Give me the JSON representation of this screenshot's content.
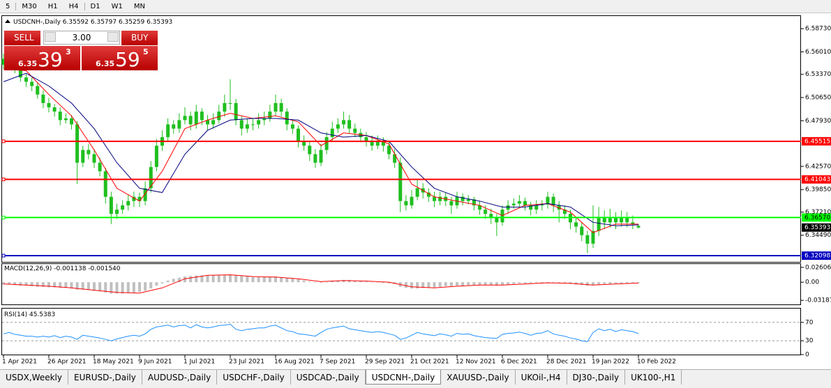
{
  "toolbar": [
    "5",
    "M30",
    "H1",
    "H4",
    "D1",
    "W1",
    "MN"
  ],
  "trade_panel": {
    "sell": "SELL",
    "buy": "BUY",
    "volume": "3.00",
    "sell_price": {
      "big": "6.35",
      "main": "39",
      "small": "3"
    },
    "buy_price": {
      "big": "6.35",
      "main": "59",
      "small": "5"
    }
  },
  "chart_data": [
    {
      "type": "candlestick",
      "title": "USDCNH-,Daily",
      "up_color": "#1fbf1f",
      "down_color": "#1fbf1f",
      "categories": [
        "1 Apr 2021",
        null,
        null,
        null,
        null,
        null,
        null,
        null,
        "26 Apr 2021",
        null,
        null,
        null,
        null,
        null,
        null,
        null,
        "18 May 2021",
        null,
        null,
        null,
        null,
        null,
        null,
        null,
        "9 Jun 2021",
        null,
        null,
        null,
        null,
        null,
        null,
        null,
        "1 Jul 2021",
        null,
        null,
        null,
        null,
        null,
        null,
        null,
        "23 Jul 2021",
        null,
        null,
        null,
        null,
        null,
        null,
        null,
        "16 Aug 2021",
        null,
        null,
        null,
        null,
        null,
        null,
        null,
        "7 Sep 2021",
        null,
        null,
        null,
        null,
        null,
        null,
        null,
        "29 Sep 2021",
        null,
        null,
        null,
        null,
        null,
        null,
        null,
        "21 Oct 2021",
        null,
        null,
        null,
        null,
        null,
        null,
        null,
        "12 Nov 2021",
        null,
        null,
        null,
        null,
        null,
        null,
        null,
        "6 Dec 2021",
        null,
        null,
        null,
        null,
        null,
        null,
        null,
        "28 Dec 2021",
        null,
        null,
        null,
        null,
        null,
        null,
        null,
        "19 Jan 2022",
        null,
        null,
        null,
        null,
        null,
        null,
        null,
        "10 Feb 2022"
      ],
      "candles": [
        [
          6.552,
          6.558,
          6.54,
          6.545
        ],
        [
          6.545,
          6.556,
          6.541,
          6.55
        ],
        [
          6.55,
          6.553,
          6.535,
          6.54
        ],
        [
          6.54,
          6.545,
          6.525,
          6.53
        ],
        [
          6.53,
          6.534,
          6.519,
          6.525
        ],
        [
          6.525,
          6.53,
          6.514,
          6.52
        ],
        [
          6.52,
          6.524,
          6.505,
          6.51
        ],
        [
          6.51,
          6.515,
          6.494,
          6.5
        ],
        [
          6.5,
          6.506,
          6.489,
          6.495
        ],
        [
          6.495,
          6.499,
          6.484,
          6.49
        ],
        [
          6.49,
          6.495,
          6.474,
          6.48
        ],
        [
          6.48,
          6.488,
          6.476,
          6.482
        ],
        [
          6.482,
          6.486,
          6.469,
          6.475
        ],
        [
          6.475,
          6.479,
          6.405,
          6.43
        ],
        [
          6.43,
          6.45,
          6.425,
          6.445
        ],
        [
          6.445,
          6.452,
          6.434,
          6.44
        ],
        [
          6.44,
          6.446,
          6.424,
          6.43
        ],
        [
          6.43,
          6.436,
          6.414,
          6.42
        ],
        [
          6.42,
          6.424,
          6.382,
          6.39
        ],
        [
          6.39,
          6.396,
          6.358,
          6.37
        ],
        [
          6.37,
          6.382,
          6.364,
          6.375
        ],
        [
          6.375,
          6.386,
          6.37,
          6.38
        ],
        [
          6.38,
          6.392,
          6.374,
          6.385
        ],
        [
          6.385,
          6.396,
          6.378,
          6.39
        ],
        [
          6.39,
          6.395,
          6.378,
          6.385
        ],
        [
          6.385,
          6.408,
          6.38,
          6.4
        ],
        [
          6.4,
          6.432,
          6.395,
          6.425
        ],
        [
          6.425,
          6.458,
          6.42,
          6.45
        ],
        [
          6.45,
          6.468,
          6.444,
          6.46
        ],
        [
          6.46,
          6.482,
          6.455,
          6.475
        ],
        [
          6.475,
          6.48,
          6.464,
          6.47
        ],
        [
          6.47,
          6.488,
          6.465,
          6.48
        ],
        [
          6.48,
          6.495,
          6.475,
          6.485
        ],
        [
          6.485,
          6.49,
          6.468,
          6.475
        ],
        [
          6.475,
          6.498,
          6.47,
          6.49
        ],
        [
          6.49,
          6.494,
          6.474,
          6.48
        ],
        [
          6.48,
          6.486,
          6.468,
          6.475
        ],
        [
          6.475,
          6.488,
          6.47,
          6.48
        ],
        [
          6.48,
          6.498,
          6.476,
          6.49
        ],
        [
          6.49,
          6.51,
          6.484,
          6.5
        ],
        [
          6.5,
          6.528,
          6.492,
          6.5
        ],
        [
          6.5,
          6.505,
          6.474,
          6.48
        ],
        [
          6.48,
          6.485,
          6.462,
          6.47
        ],
        [
          6.47,
          6.482,
          6.465,
          6.475
        ],
        [
          6.475,
          6.482,
          6.468,
          6.475
        ],
        [
          6.475,
          6.488,
          6.47,
          6.48
        ],
        [
          6.48,
          6.49,
          6.474,
          6.482
        ],
        [
          6.482,
          6.498,
          6.478,
          6.49
        ],
        [
          6.49,
          6.51,
          6.485,
          6.5
        ],
        [
          6.5,
          6.505,
          6.484,
          6.49
        ],
        [
          6.49,
          6.494,
          6.468,
          6.475
        ],
        [
          6.475,
          6.48,
          6.464,
          6.47
        ],
        [
          6.47,
          6.474,
          6.448,
          6.455
        ],
        [
          6.455,
          6.462,
          6.444,
          6.45
        ],
        [
          6.45,
          6.455,
          6.432,
          6.44
        ],
        [
          6.44,
          6.446,
          6.424,
          6.43
        ],
        [
          6.43,
          6.452,
          6.426,
          6.445
        ],
        [
          6.445,
          6.466,
          6.44,
          6.46
        ],
        [
          6.46,
          6.478,
          6.455,
          6.47
        ],
        [
          6.47,
          6.482,
          6.465,
          6.475
        ],
        [
          6.475,
          6.49,
          6.47,
          6.48
        ],
        [
          6.48,
          6.486,
          6.464,
          6.47
        ],
        [
          6.47,
          6.476,
          6.46,
          6.465
        ],
        [
          6.465,
          6.47,
          6.454,
          6.46
        ],
        [
          6.46,
          6.466,
          6.449,
          6.455
        ],
        [
          6.455,
          6.462,
          6.444,
          6.45
        ],
        [
          6.45,
          6.462,
          6.446,
          6.455
        ],
        [
          6.455,
          6.46,
          6.443,
          6.45
        ],
        [
          6.45,
          6.455,
          6.434,
          6.44
        ],
        [
          6.44,
          6.446,
          6.424,
          6.43
        ],
        [
          6.43,
          6.436,
          6.372,
          6.385
        ],
        [
          6.385,
          6.392,
          6.374,
          6.38
        ],
        [
          6.38,
          6.398,
          6.376,
          6.39
        ],
        [
          6.39,
          6.41,
          6.386,
          6.4
        ],
        [
          6.4,
          6.406,
          6.388,
          6.395
        ],
        [
          6.395,
          6.4,
          6.384,
          6.39
        ],
        [
          6.39,
          6.396,
          6.378,
          6.385
        ],
        [
          6.385,
          6.396,
          6.38,
          6.39
        ],
        [
          6.39,
          6.395,
          6.379,
          6.385
        ],
        [
          6.385,
          6.39,
          6.37,
          6.38
        ],
        [
          6.38,
          6.396,
          6.376,
          6.39
        ],
        [
          6.39,
          6.394,
          6.38,
          6.385
        ],
        [
          6.385,
          6.392,
          6.381,
          6.387
        ],
        [
          6.387,
          6.39,
          6.374,
          6.38
        ],
        [
          6.38,
          6.385,
          6.369,
          6.375
        ],
        [
          6.375,
          6.38,
          6.364,
          6.37
        ],
        [
          6.37,
          6.376,
          6.358,
          6.365
        ],
        [
          6.365,
          6.37,
          6.344,
          6.36
        ],
        [
          6.36,
          6.38,
          6.356,
          6.375
        ],
        [
          6.375,
          6.386,
          6.37,
          6.38
        ],
        [
          6.38,
          6.388,
          6.376,
          6.382
        ],
        [
          6.382,
          6.392,
          6.378,
          6.385
        ],
        [
          6.385,
          6.389,
          6.374,
          6.38
        ],
        [
          6.38,
          6.384,
          6.368,
          6.375
        ],
        [
          6.375,
          6.386,
          6.37,
          6.38
        ],
        [
          6.38,
          6.386,
          6.374,
          6.381
        ],
        [
          6.381,
          6.396,
          6.376,
          6.39
        ],
        [
          6.39,
          6.394,
          6.372,
          6.38
        ],
        [
          6.38,
          6.385,
          6.36,
          6.375
        ],
        [
          6.375,
          6.38,
          6.364,
          6.37
        ],
        [
          6.37,
          6.375,
          6.352,
          6.36
        ],
        [
          6.36,
          6.366,
          6.348,
          6.355
        ],
        [
          6.355,
          6.36,
          6.338,
          6.345
        ],
        [
          6.345,
          6.35,
          6.324,
          6.335
        ],
        [
          6.335,
          6.38,
          6.33,
          6.35
        ],
        [
          6.35,
          6.378,
          6.344,
          6.365
        ],
        [
          6.365,
          6.374,
          6.352,
          6.36
        ],
        [
          6.36,
          6.376,
          6.354,
          6.365
        ],
        [
          6.365,
          6.372,
          6.352,
          6.36
        ],
        [
          6.36,
          6.374,
          6.355,
          6.365
        ],
        [
          6.365,
          6.372,
          6.354,
          6.36
        ],
        [
          6.36,
          6.368,
          6.352,
          6.358
        ],
        [
          6.35592,
          6.35797,
          6.35259,
          6.35393
        ]
      ],
      "line_x": [
        0,
        4,
        8,
        12,
        16,
        20,
        24,
        28,
        32,
        36,
        40,
        44,
        48,
        52,
        56,
        60,
        64,
        68,
        72,
        76,
        80,
        84,
        88,
        92,
        96,
        100,
        104,
        108,
        112
      ],
      "lines": [
        {
          "color": "#ff0000",
          "values": [
            6.54,
            6.538,
            6.51,
            6.485,
            6.445,
            6.4,
            6.385,
            6.42,
            6.47,
            6.48,
            6.488,
            6.482,
            6.485,
            6.478,
            6.45,
            6.465,
            6.462,
            6.452,
            6.405,
            6.39,
            6.385,
            6.38,
            6.368,
            6.38,
            6.382,
            6.372,
            6.348,
            6.358,
            6.358
          ]
        },
        {
          "color": "#000080",
          "values": [
            6.525,
            6.535,
            6.52,
            6.5,
            6.47,
            6.43,
            6.4,
            6.395,
            6.44,
            6.468,
            6.48,
            6.482,
            6.482,
            6.48,
            6.465,
            6.46,
            6.462,
            6.455,
            6.425,
            6.4,
            6.39,
            6.385,
            6.378,
            6.378,
            6.382,
            6.378,
            6.36,
            6.356,
            6.357
          ]
        }
      ],
      "levels": [
        {
          "value": 6.45515,
          "color": "#ff0000"
        },
        {
          "value": 6.41043,
          "color": "#ff0000"
        },
        {
          "value": 6.3657,
          "label": "6.36570",
          "color": "#00ff00"
        },
        {
          "value": 6.32098,
          "color": "#0000c0"
        }
      ],
      "ylim": [
        6.3136,
        6.5997
      ],
      "yticks": [
        {
          "value": 6.5873,
          "label": "6.58730"
        },
        {
          "value": 6.5601,
          "label": "6.56010"
        },
        {
          "value": 6.5337,
          "label": "6.53370"
        },
        {
          "value": 6.5065,
          "label": "6.50650"
        },
        {
          "value": 6.4793,
          "label": "6.47930"
        },
        {
          "value": 6.4257,
          "label": "6.42570"
        },
        {
          "value": 6.3985,
          "label": "6.39850"
        },
        {
          "value": 6.3721,
          "label": "6.37210"
        },
        {
          "value": 6.3449,
          "label": "6.34490"
        }
      ]
    },
    {
      "type": "bar",
      "title": "MACD(12,26,9)",
      "readout": [
        -0.001138,
        {
          "value": -0.00154,
          "label": "-0.001540"
        }
      ],
      "color": "#c0c0c0",
      "values": [
        -0.004,
        -0.004,
        -0.005,
        -0.006,
        -0.006,
        -0.007,
        -0.008,
        -0.008,
        -0.009,
        -0.009,
        -0.01,
        -0.01,
        -0.011,
        -0.013,
        -0.013,
        -0.014,
        -0.015,
        -0.016,
        -0.018,
        -0.02,
        -0.02,
        -0.02,
        -0.019,
        -0.018,
        -0.017,
        -0.015,
        -0.011,
        -0.006,
        -0.002,
        0.003,
        0.006,
        0.008,
        0.01,
        0.011,
        0.012,
        0.012,
        0.012,
        0.012,
        0.012,
        0.013,
        0.013,
        0.012,
        0.011,
        0.01,
        0.009,
        0.009,
        0.009,
        0.009,
        0.01,
        0.009,
        0.008,
        0.007,
        0.005,
        0.003,
        0.001,
        -0.001,
        -0.001,
        0.0,
        0.002,
        0.003,
        0.004,
        0.004,
        0.003,
        0.002,
        0.001,
        0.0,
        0.0,
        -0.001,
        -0.002,
        -0.003,
        -0.008,
        -0.01,
        -0.011,
        -0.011,
        -0.01,
        -0.009,
        -0.009,
        -0.008,
        -0.007,
        -0.007,
        -0.006,
        -0.006,
        -0.005,
        -0.005,
        -0.005,
        -0.005,
        -0.005,
        -0.006,
        -0.005,
        -0.004,
        -0.003,
        -0.002,
        -0.002,
        -0.002,
        -0.001,
        -0.001,
        0.0,
        -0.001,
        -0.001,
        -0.002,
        -0.003,
        -0.004,
        -0.005,
        -0.006,
        -0.005,
        -0.004,
        -0.003,
        -0.003,
        -0.002,
        -0.002,
        -0.002,
        -0.001,
        -0.001
      ],
      "signal": {
        "color": "#ff0000",
        "values": [
          -0.003,
          -0.005,
          -0.007,
          -0.01,
          -0.014,
          -0.018,
          -0.019,
          -0.01,
          0.006,
          0.012,
          0.013,
          0.01,
          0.009,
          0.006,
          0.001,
          0.003,
          0.002,
          0.0,
          -0.008,
          -0.01,
          -0.007,
          -0.005,
          -0.005,
          -0.003,
          -0.001,
          -0.002,
          -0.005,
          -0.003,
          -0.0015
        ]
      },
      "ylim": [
        -0.039,
        0.032
      ],
      "yticks": [
        0.02606,
        {
          "value": 0,
          "label": "0.00"
        },
        -0.03187
      ]
    },
    {
      "type": "line",
      "title": "RSI(14)",
      "color": "#1e90ff",
      "values": [
        45,
        48,
        44,
        42,
        40,
        40,
        38,
        40,
        38,
        41,
        37,
        40,
        38,
        33,
        42,
        40,
        38,
        36,
        33,
        30,
        34,
        37,
        40,
        42,
        40,
        45,
        55,
        60,
        62,
        64,
        60,
        63,
        64,
        58,
        65,
        60,
        58,
        60,
        63,
        64,
        66,
        55,
        52,
        55,
        56,
        58,
        58,
        62,
        64,
        58,
        52,
        50,
        45,
        44,
        42,
        40,
        48,
        55,
        58,
        60,
        62,
        56,
        54,
        52,
        50,
        48,
        50,
        48,
        45,
        42,
        33,
        36,
        42,
        48,
        45,
        43,
        41,
        45,
        43,
        40,
        46,
        44,
        45,
        41,
        39,
        37,
        36,
        35,
        44,
        46,
        47,
        49,
        46,
        42,
        46,
        47,
        52,
        45,
        42,
        40,
        36,
        34,
        30,
        28,
        48,
        56,
        52,
        55,
        50,
        54,
        52,
        50,
        45.5383
      ],
      "levels": [
        70,
        30
      ],
      "ylim": [
        0,
        100
      ],
      "yticks": [
        70,
        30,
        0
      ]
    }
  ],
  "tabs": [
    "USDX,Weekly",
    "EURUSD-,Daily",
    "AUDUSD-,Daily",
    "USDCHF-,Daily",
    "USDCAD-,Daily",
    "USDCNH-,Daily",
    "XAUUSD-,Daily",
    "UKOil-,H4",
    "DJ30-,Daily",
    "UK100-,H1"
  ],
  "active_tab": 5
}
